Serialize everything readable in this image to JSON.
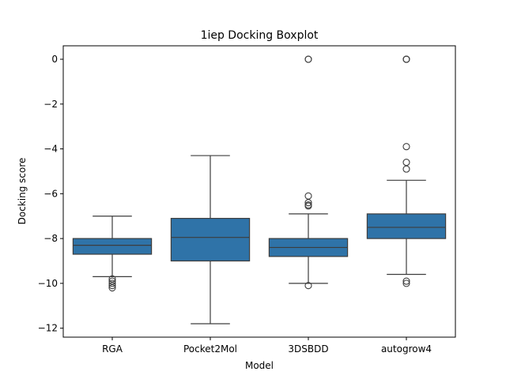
{
  "chart_data": {
    "type": "boxplot",
    "title": "1iep Docking Boxplot",
    "xlabel": "Model",
    "ylabel": "Docking score",
    "ylim": [
      -12.4,
      0.6
    ],
    "yticks": [
      0,
      -2,
      -4,
      -6,
      -8,
      -10,
      -12
    ],
    "grid": false,
    "box_color": "#2f73a8",
    "categories": [
      "RGA",
      "Pocket2Mol",
      "3DSBDD",
      "autogrow4"
    ],
    "boxes": [
      {
        "whisker_low": -9.7,
        "q1": -8.7,
        "median": -8.3,
        "q3": -8.0,
        "whisker_high": -7.0,
        "outliers": [
          -9.8,
          -9.9,
          -10.0,
          -10.1,
          -10.2
        ]
      },
      {
        "whisker_low": -11.8,
        "q1": -9.0,
        "median": -7.95,
        "q3": -7.1,
        "whisker_high": -4.3,
        "outliers": []
      },
      {
        "whisker_low": -10.0,
        "q1": -8.8,
        "median": -8.4,
        "q3": -8.0,
        "whisker_high": -6.9,
        "outliers": [
          0.0,
          0.0,
          -6.1,
          -6.4,
          -6.5,
          -6.55,
          -10.1
        ]
      },
      {
        "whisker_low": -9.6,
        "q1": -8.0,
        "median": -7.5,
        "q3": -6.9,
        "whisker_high": -5.4,
        "outliers": [
          0.0,
          0.0,
          0.0,
          -3.9,
          -4.6,
          -4.9,
          -9.9,
          -10.0
        ]
      }
    ]
  }
}
